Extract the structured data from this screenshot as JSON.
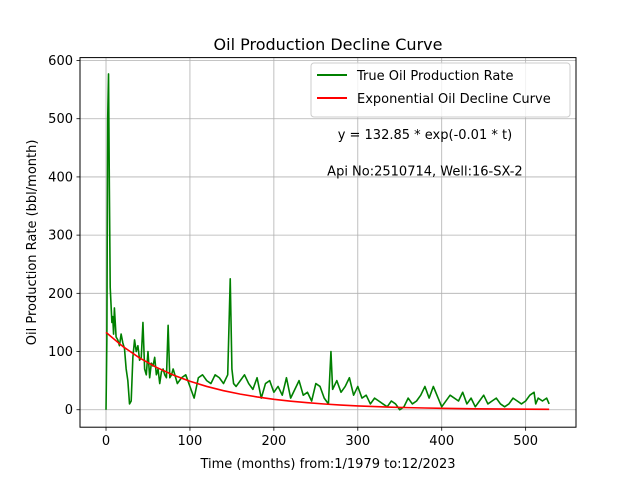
{
  "chart_data": {
    "type": "line",
    "title": "Oil Production Decline Curve",
    "xlabel": "Time (months) from:1/1979 to:12/2023",
    "ylabel": "Oil Production Rate (bbl/month)",
    "xlim": [
      -31,
      560
    ],
    "ylim": [
      -30,
      605
    ],
    "xticks": [
      0,
      100,
      200,
      300,
      400,
      500
    ],
    "yticks": [
      0,
      100,
      200,
      300,
      400,
      500,
      600
    ],
    "grid": true,
    "legend_position": "top-right",
    "annotations": [
      {
        "text": "y = 132.85 * exp(-0.01 * t)",
        "x": 380,
        "y": 473
      },
      {
        "text": "Api No:2510714, Well:16-SX-2",
        "x": 380,
        "y": 410
      }
    ],
    "series": [
      {
        "name": "True Oil Production Rate",
        "color": "#008000",
        "x": [
          0,
          1,
          2,
          3,
          4,
          5,
          6,
          7,
          8,
          9,
          10,
          12,
          14,
          16,
          18,
          20,
          22,
          24,
          26,
          28,
          30,
          32,
          34,
          36,
          38,
          40,
          42,
          44,
          46,
          48,
          50,
          52,
          54,
          56,
          58,
          60,
          62,
          64,
          66,
          68,
          70,
          72,
          74,
          76,
          78,
          80,
          85,
          90,
          95,
          100,
          105,
          110,
          115,
          120,
          125,
          130,
          135,
          140,
          145,
          148,
          150,
          152,
          155,
          160,
          165,
          170,
          175,
          180,
          185,
          190,
          195,
          200,
          205,
          210,
          215,
          220,
          225,
          230,
          235,
          240,
          245,
          250,
          255,
          260,
          265,
          268,
          270,
          275,
          280,
          285,
          290,
          295,
          300,
          305,
          310,
          315,
          320,
          325,
          330,
          335,
          340,
          345,
          350,
          355,
          360,
          365,
          370,
          375,
          380,
          385,
          390,
          400,
          410,
          420,
          425,
          430,
          435,
          440,
          445,
          450,
          455,
          460,
          465,
          470,
          475,
          480,
          485,
          490,
          495,
          500,
          505,
          510,
          512,
          515,
          520,
          525,
          528
        ],
        "y": [
          0,
          120,
          500,
          577,
          380,
          210,
          180,
          150,
          160,
          130,
          175,
          125,
          120,
          110,
          130,
          115,
          105,
          70,
          50,
          10,
          15,
          90,
          120,
          100,
          110,
          85,
          90,
          150,
          70,
          60,
          100,
          55,
          80,
          75,
          90,
          60,
          70,
          45,
          65,
          70,
          60,
          55,
          145,
          55,
          60,
          70,
          45,
          55,
          60,
          40,
          20,
          55,
          60,
          50,
          45,
          60,
          55,
          45,
          60,
          225,
          70,
          45,
          40,
          50,
          60,
          45,
          35,
          55,
          20,
          45,
          50,
          30,
          40,
          25,
          55,
          20,
          35,
          50,
          25,
          30,
          15,
          45,
          40,
          20,
          10,
          100,
          35,
          50,
          30,
          40,
          55,
          25,
          40,
          20,
          25,
          10,
          20,
          15,
          10,
          5,
          15,
          10,
          0,
          5,
          20,
          10,
          15,
          25,
          40,
          20,
          40,
          5,
          25,
          15,
          30,
          10,
          20,
          5,
          15,
          25,
          10,
          15,
          20,
          10,
          5,
          10,
          20,
          15,
          10,
          15,
          25,
          30,
          10,
          20,
          15,
          20,
          10
        ]
      },
      {
        "name": "Exponential Oil Decline Curve",
        "color": "#ff0000",
        "x": [
          0,
          20,
          40,
          60,
          80,
          100,
          120,
          140,
          160,
          180,
          200,
          220,
          240,
          260,
          280,
          300,
          320,
          340,
          360,
          380,
          400,
          420,
          440,
          460,
          480,
          500,
          528
        ],
        "y": [
          132.85,
          108.77,
          89.05,
          72.91,
          59.69,
          48.87,
          40.01,
          32.76,
          26.82,
          21.96,
          17.98,
          14.72,
          12.05,
          9.87,
          8.08,
          6.61,
          5.42,
          4.43,
          3.63,
          2.97,
          2.43,
          1.99,
          1.63,
          1.34,
          1.09,
          0.9,
          0.68
        ]
      }
    ]
  }
}
